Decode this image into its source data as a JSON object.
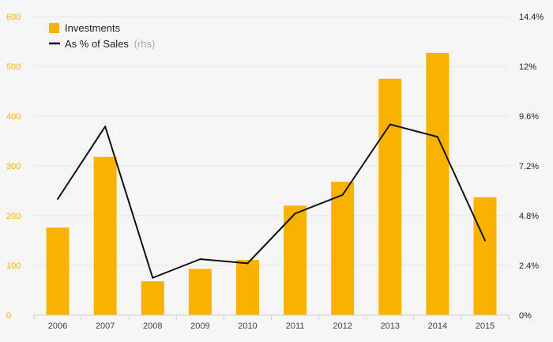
{
  "chart_data": {
    "type": "bar",
    "categories": [
      "2006",
      "2007",
      "2008",
      "2009",
      "2010",
      "2011",
      "2012",
      "2013",
      "2014",
      "2015"
    ],
    "series": [
      {
        "name": "Investments",
        "type": "bar",
        "axis": "left",
        "values": [
          176,
          318,
          68,
          93,
          111,
          220,
          268,
          475,
          527,
          237
        ]
      },
      {
        "name": "As % of Sales",
        "name_suffix": "(rhs)",
        "type": "line",
        "axis": "right",
        "values": [
          5.6,
          9.1,
          1.8,
          2.7,
          2.5,
          4.9,
          5.8,
          9.2,
          8.6,
          3.6
        ]
      }
    ],
    "ylim": [
      0,
      600
    ],
    "y_ticks": [
      "0",
      "100",
      "200",
      "300",
      "400",
      "500",
      "600"
    ],
    "y2lim": [
      0,
      14.4
    ],
    "y2_ticks": [
      "0%",
      "2.4%",
      "4.8%",
      "7.2%",
      "9.6%",
      "12%",
      "14.4%"
    ],
    "grid": true,
    "legend_position": "top-left",
    "colors": {
      "bar": "#f9b200",
      "line": "#111111",
      "left_axis_text": "#f5b400"
    }
  }
}
